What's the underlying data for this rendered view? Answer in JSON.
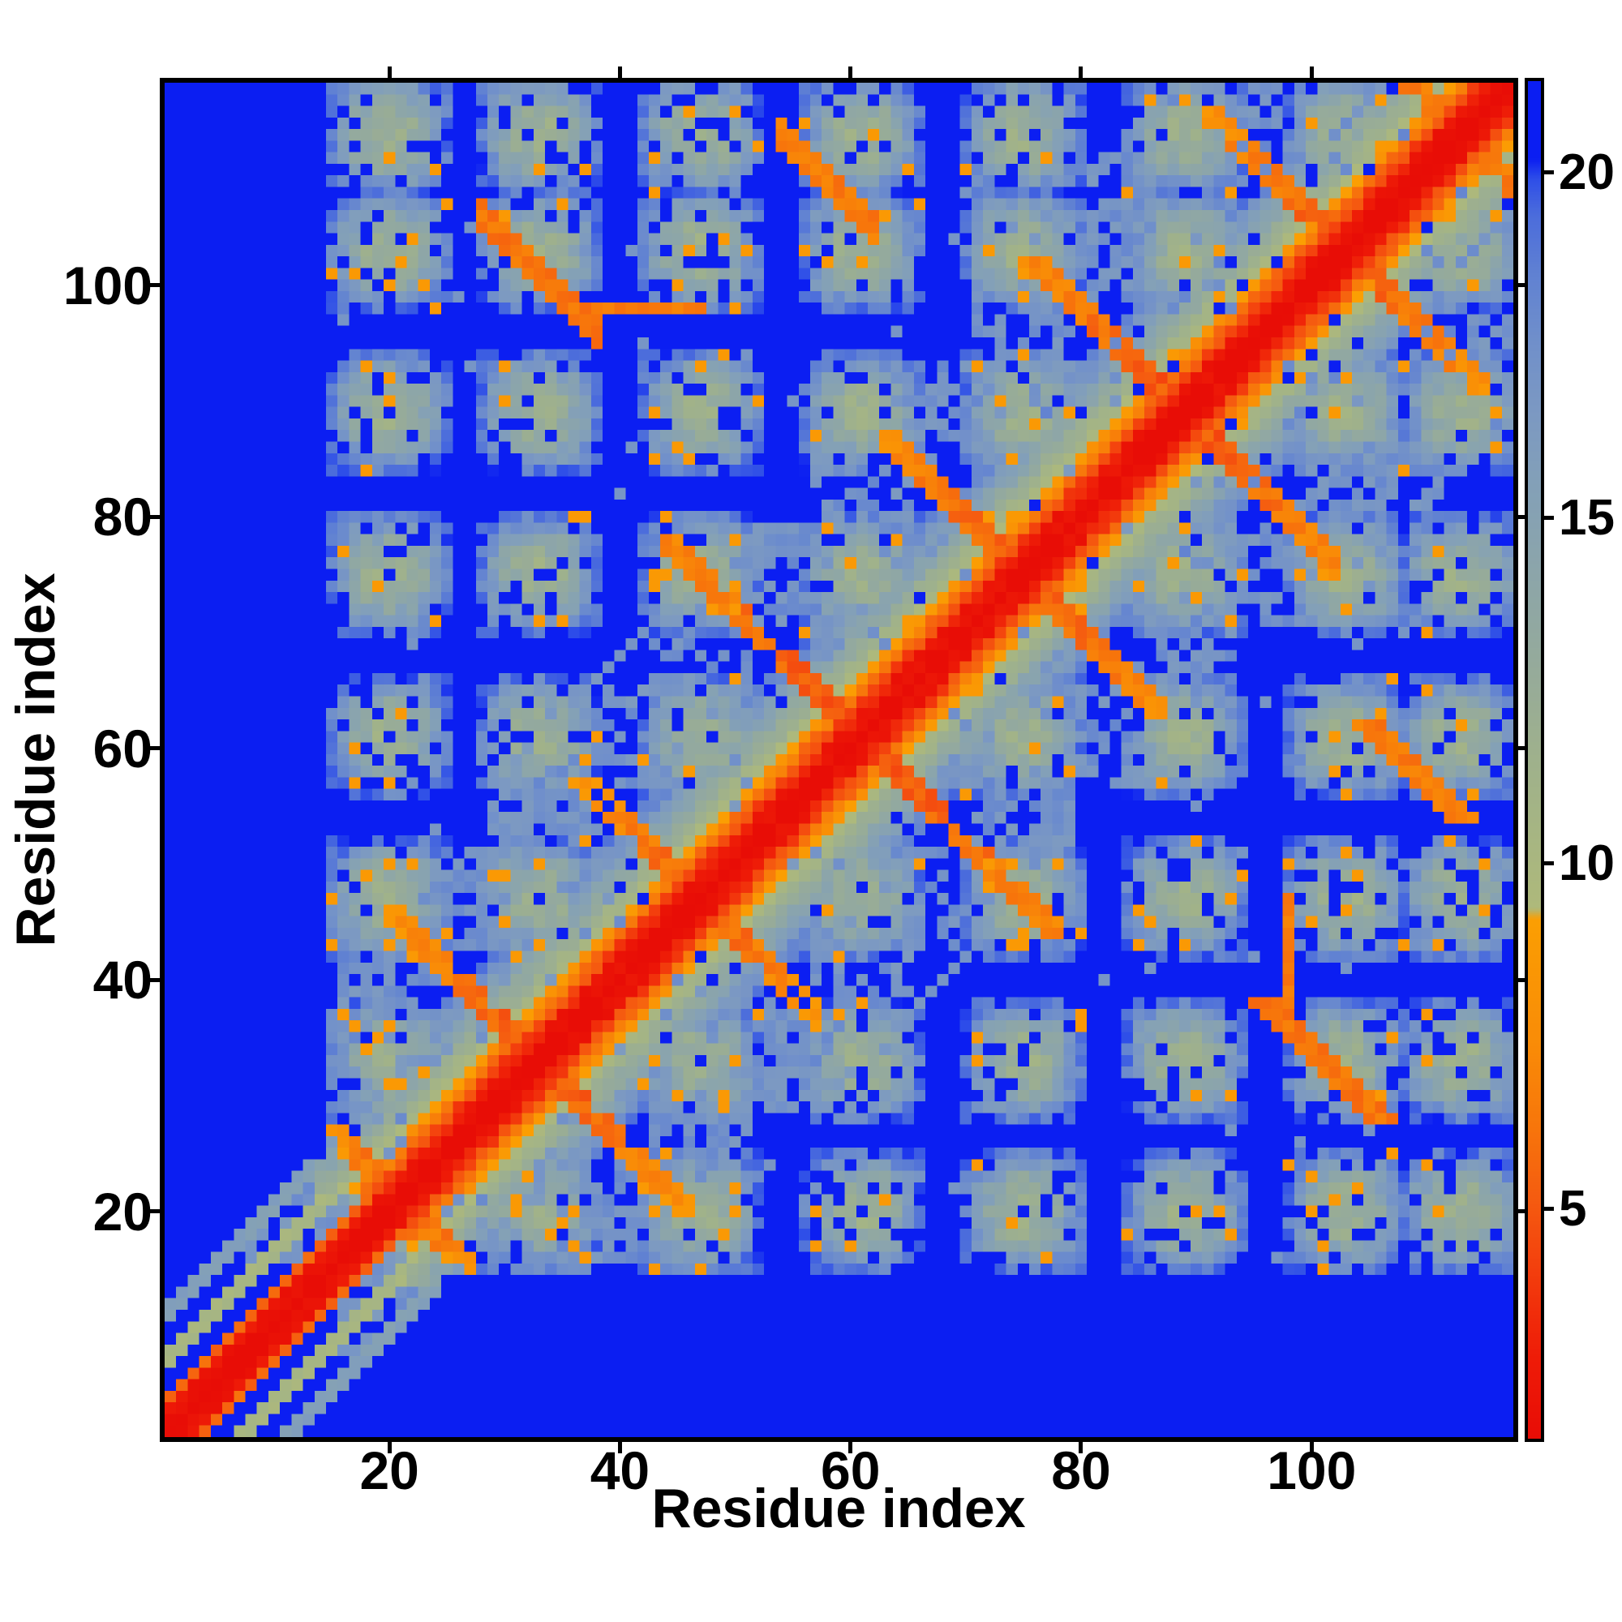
{
  "chart_data": {
    "type": "heatmap",
    "title": "",
    "xlabel": "Residue index",
    "ylabel": "Residue index",
    "x_ticks": [
      20,
      40,
      60,
      80,
      100
    ],
    "y_ticks": [
      20,
      40,
      60,
      80,
      100
    ],
    "n_residues": 117,
    "x_range": [
      1,
      117
    ],
    "y_range": [
      1,
      117
    ],
    "symmetric": true,
    "grid": false,
    "background_color": "#ffffff",
    "colorbar": {
      "ticks": [
        5,
        10,
        15,
        20
      ],
      "vmin": 1.7,
      "vmax": 21.3,
      "position": "right"
    },
    "colormap": {
      "low_color_meaning": "small value (red) on diagonal",
      "high_color_meaning": "large value (blue) background",
      "stops": [
        [
          1.7,
          "#e80d06"
        ],
        [
          2.8,
          "#ee1b07"
        ],
        [
          3.6,
          "#f1300b"
        ],
        [
          4.4,
          "#f4470e"
        ],
        [
          5.2,
          "#f55d10"
        ],
        [
          6.2,
          "#f7760b"
        ],
        [
          7.4,
          "#f98c07"
        ],
        [
          8.6,
          "#fa9804"
        ],
        [
          9.2,
          "#fb9f03"
        ],
        [
          9.35,
          "#aeb97b"
        ],
        [
          10.5,
          "#a6b583"
        ],
        [
          11.5,
          "#9fb18c"
        ],
        [
          12.5,
          "#98ac97"
        ],
        [
          13.5,
          "#91a8a2"
        ],
        [
          14.5,
          "#8aa4ad"
        ],
        [
          15.5,
          "#83a0b8"
        ],
        [
          16.5,
          "#7c99c2"
        ],
        [
          17.5,
          "#7190ca"
        ],
        [
          18.5,
          "#6182d2"
        ],
        [
          19.4,
          "#4b6cdc"
        ],
        [
          19.9,
          "#2f4fe8"
        ],
        [
          20.2,
          "#0b1ef2"
        ],
        [
          21.3,
          "#0b1ef2"
        ]
      ]
    },
    "matrix_model": {
      "n": 117,
      "base": 21.3,
      "vmin": 1.7,
      "seed": 1299721,
      "nterm": {
        "end": 21,
        "jitter": 1.0,
        "profile": [
          0,
          1.8,
          2.4,
          5.6,
          21.3,
          21.3,
          10.6,
          10.2,
          21.3,
          21.3,
          15.4,
          15.8,
          21.3
        ]
      },
      "diag": {
        "jitter": 1.6,
        "holeP": 0.1,
        "profile": [
          0,
          1.8,
          2.7,
          4.4,
          6.2,
          8.4,
          10.2,
          11.5,
          12.7,
          13.9,
          15.1,
          16.3,
          17.6,
          18.8
        ]
      },
      "isolate": {
        "end": 14,
        "minSep": 12
      },
      "stripes": [
        {
          "offset": 7,
          "from": 1,
          "to": 14,
          "v": 10.4
        },
        {
          "offset": 11,
          "from": 1,
          "to": 12,
          "v": 15.6
        },
        {
          "offset": 22,
          "from": 13,
          "to": 34,
          "v": 16.8
        },
        {
          "offset": 28,
          "from": 30,
          "to": 44,
          "v": 17.0
        }
      ],
      "xs": [
        {
          "c": 21,
          "len": 6,
          "v0": 5.2,
          "v1": 7.5
        },
        {
          "c": 33,
          "len": 13,
          "v0": 4.6,
          "v1": 7.8
        },
        {
          "c": 47,
          "len": 10,
          "v0": 5.0,
          "v1": 8.0
        },
        {
          "c": 61,
          "len": 17,
          "v0": 4.4,
          "v1": 7.2
        },
        {
          "c": 75,
          "len": 12,
          "v0": 4.8,
          "v1": 7.6
        },
        {
          "c": 89,
          "len": 14,
          "v0": 4.6,
          "v1": 7.4
        },
        {
          "c": 103,
          "len": 12,
          "v0": 4.8,
          "v1": 7.8
        },
        {
          "c": 113,
          "len": 5,
          "v0": 5.2,
          "v1": 7.0
        }
      ],
      "xGapP": 0.12,
      "extra_streaks": [
        {
          "type": "antidiag",
          "u": 134,
          "amin": 28,
          "amax": 38,
          "v": 6.2
        },
        {
          "type": "antidiag",
          "u": 167,
          "amin": 54,
          "amax": 62,
          "v": 6.5
        },
        {
          "type": "row",
          "fixed": 98,
          "from": 37,
          "to": 47,
          "v": 6.6
        }
      ],
      "clouds": {
        "turns": [
          20,
          33,
          47,
          61,
          75,
          89,
          103,
          113
        ],
        "radius": 6.0,
        "depth": 9.5,
        "jitter": 2.6,
        "holeP": 0.17,
        "orangeP": 0.045,
        "orangeV": 8.7,
        "minSep": 3
      },
      "corridor": {
        "maxSep": 30,
        "p": 0.55,
        "v": 18.2,
        "jitter": 2.0
      },
      "speckle": {
        "p": 0.018,
        "v": 17.0
      }
    }
  }
}
